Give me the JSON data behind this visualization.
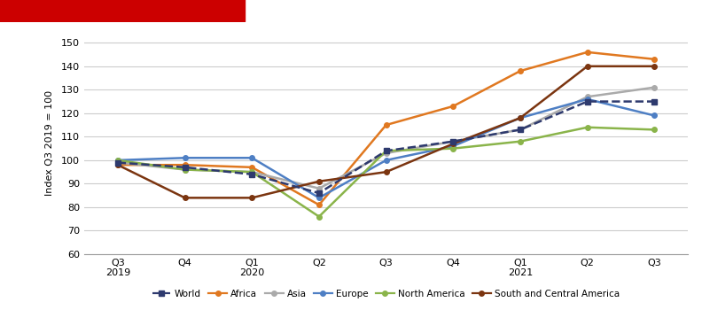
{
  "x_labels": [
    "Q3\n2019",
    "Q4",
    "Q1\n2020",
    "Q2",
    "Q3",
    "Q4",
    "Q1\n2021",
    "Q2",
    "Q3"
  ],
  "series": {
    "World": [
      99,
      97,
      94,
      86,
      104,
      108,
      113,
      125,
      125
    ],
    "Africa": [
      98,
      98,
      97,
      81,
      115,
      123,
      138,
      146,
      143
    ],
    "Asia": [
      99,
      96,
      95,
      88,
      103,
      108,
      113,
      127,
      131
    ],
    "Europe": [
      100,
      101,
      101,
      84,
      100,
      106,
      118,
      126,
      119
    ],
    "North America": [
      100,
      96,
      95,
      76,
      104,
      105,
      108,
      114,
      113
    ],
    "South and Central America": [
      98,
      84,
      84,
      91,
      95,
      107,
      118,
      140,
      140
    ]
  },
  "colors": {
    "World": "#2e3a6e",
    "Africa": "#e07820",
    "Asia": "#aaaaaa",
    "Europe": "#4e7fc4",
    "North America": "#8ab44a",
    "South and Central America": "#7b3510"
  },
  "ylabel": "Index Q3 2019 = 100",
  "ylim": [
    60,
    155
  ],
  "yticks": [
    60,
    70,
    80,
    90,
    100,
    110,
    120,
    130,
    140,
    150
  ],
  "fig_background": "#ffffff",
  "plot_background": "#ffffff",
  "header_color": "#b0b0b0",
  "grid_color": "#cccccc",
  "linewidth": 1.8,
  "markersize": 4,
  "legend_order": [
    "World",
    "Africa",
    "Asia",
    "Europe",
    "North America",
    "South and Central America"
  ]
}
